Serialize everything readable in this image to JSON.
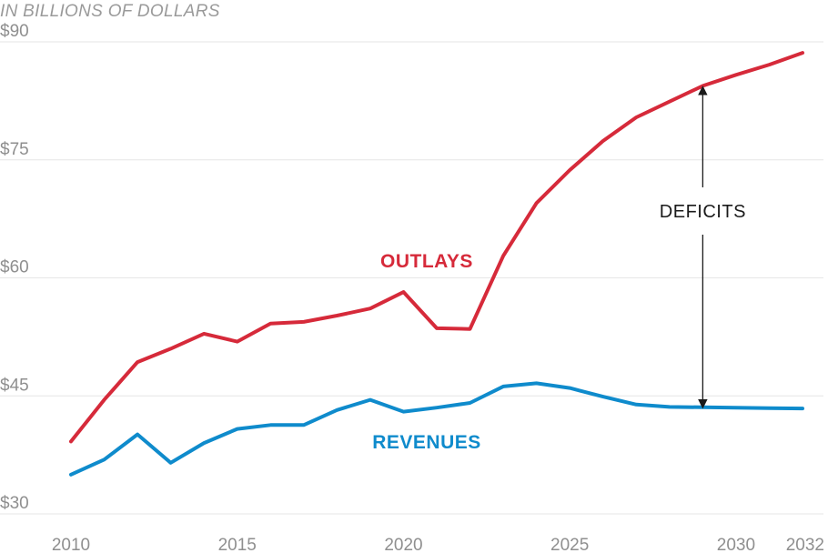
{
  "chart_data": {
    "type": "line",
    "title": "",
    "unit_label": "IN BILLIONS OF DOLLARS",
    "xlabel": "",
    "ylabel": "",
    "xlim": [
      2010,
      2032
    ],
    "ylim": [
      30,
      90
    ],
    "grid": true,
    "x": [
      2010,
      2011,
      2012,
      2013,
      2014,
      2015,
      2016,
      2017,
      2018,
      2019,
      2020,
      2021,
      2022,
      2023,
      2024,
      2025,
      2026,
      2027,
      2028,
      2029,
      2030,
      2031,
      2032
    ],
    "series": [
      {
        "name": "OUTLAYS",
        "color": "#d62a3a",
        "values": [
          39.2,
          44.5,
          49.3,
          51.0,
          52.9,
          51.9,
          54.2,
          54.4,
          55.2,
          56.1,
          58.2,
          53.6,
          53.5,
          62.8,
          69.5,
          73.7,
          77.4,
          80.4,
          82.4,
          84.4,
          85.8,
          87.1,
          88.6
        ]
      },
      {
        "name": "REVENUES",
        "color": "#0f8bcc",
        "values": [
          35.0,
          36.9,
          40.1,
          36.5,
          39.0,
          40.8,
          41.3,
          41.3,
          43.2,
          44.5,
          43.0,
          43.5,
          44.1,
          46.2,
          46.6,
          46.0,
          44.9,
          43.9,
          43.6,
          43.55,
          43.5,
          43.45,
          43.4
        ]
      }
    ],
    "y_ticks": [
      {
        "value": 90,
        "label": "$90"
      },
      {
        "value": 75,
        "label": "$75"
      },
      {
        "value": 60,
        "label": "$60"
      },
      {
        "value": 45,
        "label": "$45"
      },
      {
        "value": 30,
        "label": "$30"
      }
    ],
    "x_ticks": [
      {
        "value": 2010,
        "label": "2010"
      },
      {
        "value": 2015,
        "label": "2015"
      },
      {
        "value": 2020,
        "label": "2020"
      },
      {
        "value": 2025,
        "label": "2025"
      },
      {
        "value": 2030,
        "label": "2030"
      },
      {
        "value": 2032,
        "label": "2032"
      }
    ],
    "annotations": [
      {
        "label": "DEFICITS",
        "x": 2029,
        "y_top": 84.2,
        "y_bottom": 43.6,
        "label_y": 68.5
      }
    ]
  }
}
